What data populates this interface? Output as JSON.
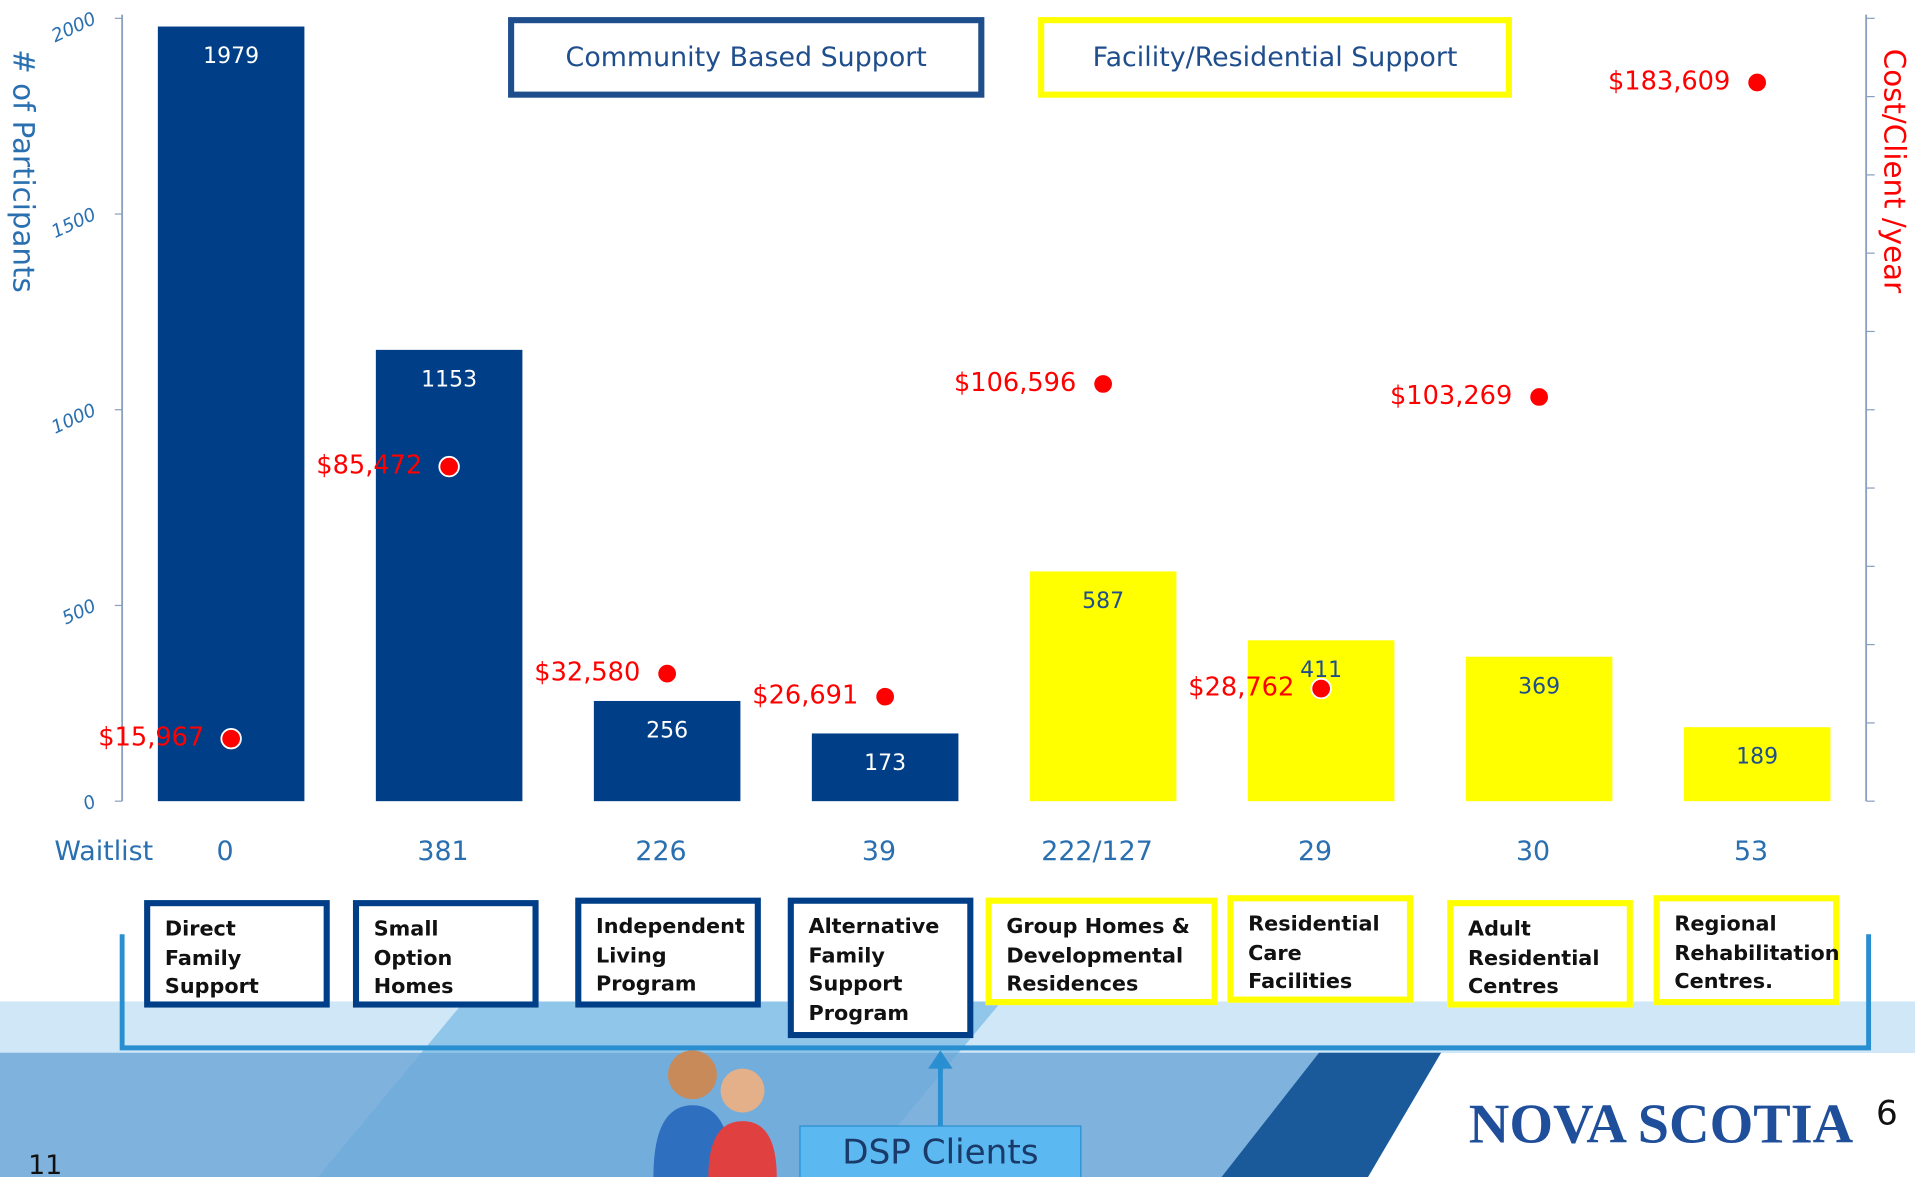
{
  "chart_data": {
    "type": "bar",
    "categories": [
      "Direct Family Support",
      "Small Option Homes",
      "Independent Living Program",
      "Alternative Family Support Program",
      "Group Homes & Developmental Residences",
      "Residential Care Facilities",
      "Adult Residential Centres",
      "Regional Rehabilitation Centres."
    ],
    "values": [
      1979,
      1153,
      256,
      173,
      587,
      411,
      369,
      189
    ],
    "colors": [
      "#003f87",
      "#003f87",
      "#003f87",
      "#003f87",
      "#ffff00",
      "#ffff00",
      "#ffff00",
      "#ffff00"
    ],
    "cost": {
      "type": "scatter",
      "axis": "y2",
      "color": "#ff0000",
      "values": [
        15967,
        85472,
        32580,
        26691,
        106596,
        28762,
        103269,
        183609
      ],
      "value_labels": [
        "$15,967",
        "$85,472",
        "$32,580",
        "$26,691",
        "$106,596",
        "$28,762",
        "$103,269",
        "$183,609"
      ]
    },
    "ylabel": "# of Participants",
    "y2label": "Cost/Client /year",
    "ylim": [
      0,
      2000
    ],
    "yticks": [
      0,
      500,
      1000,
      1500,
      2000
    ],
    "y2lim": [
      0,
      200000
    ],
    "y2ticks": [
      0,
      20000,
      40000,
      60000,
      80000,
      100000,
      120000,
      140000,
      160000,
      180000,
      200000
    ],
    "waitlist_label": "Waitlist",
    "waitlist": [
      0,
      381,
      226,
      39,
      "222/127",
      29,
      30,
      53
    ],
    "groups": [
      "Community Based Support",
      "Facility/Residential Support"
    ],
    "footer": "DSP Clients",
    "logo": "NOVA SCOTIA",
    "page_numbers": [
      "6",
      "11"
    ]
  }
}
